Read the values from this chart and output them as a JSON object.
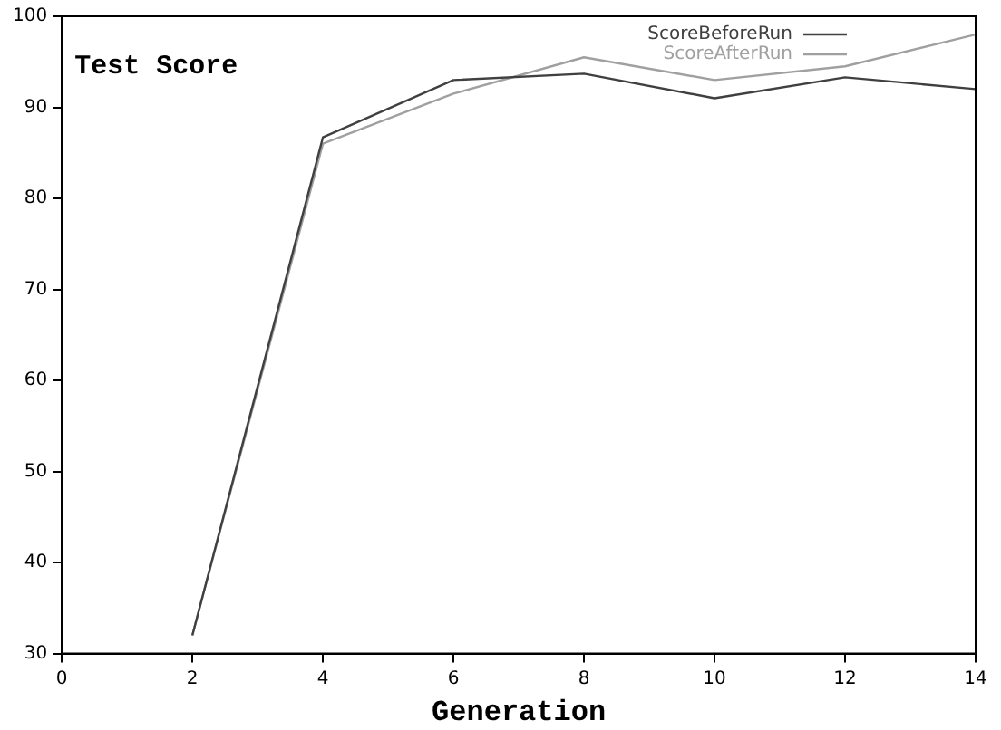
{
  "chart_data": {
    "type": "line",
    "title": "Test Score",
    "xlabel": "Generation",
    "x": [
      2,
      4,
      6,
      8,
      10,
      12,
      14
    ],
    "series": [
      {
        "name": "ScoreBeforeRun",
        "color": "#404040",
        "values": [
          32,
          86.7,
          93,
          93.7,
          91,
          93.3,
          92
        ]
      },
      {
        "name": "ScoreAfterRun",
        "color": "#a0a0a0",
        "values": [
          32,
          86,
          91.5,
          95.5,
          93,
          94.5,
          98
        ]
      }
    ],
    "xlim": [
      0,
      14
    ],
    "xticks": [
      0,
      2,
      4,
      6,
      8,
      10,
      12,
      14
    ],
    "ylim": [
      30,
      100
    ],
    "yticks": [
      30,
      40,
      50,
      60,
      70,
      80,
      90,
      100
    ],
    "grid": false,
    "legend": "top right",
    "marker": "none",
    "line_style": "solid"
  }
}
